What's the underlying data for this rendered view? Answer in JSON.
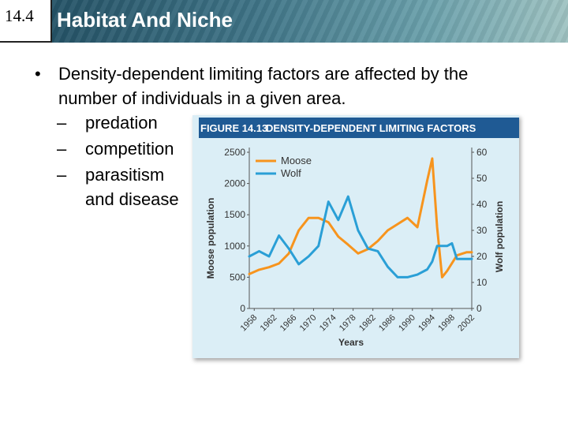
{
  "slide": {
    "section_number": "14.4",
    "title": "Habitat And Niche"
  },
  "bullets": {
    "main": "Density-dependent limiting factors are affected by the number of individuals in a given area.",
    "subs": [
      "predation",
      "competition",
      "parasitism",
      "and disease"
    ]
  },
  "chart_data": {
    "type": "line",
    "figure_label": "FIGURE 14.13",
    "title": "DENSITY-DEPENDENT LIMITING FACTORS",
    "xlabel": "Years",
    "ylabel": "Moose population",
    "y2label": "Wolf population",
    "x_ticks": [
      "1958",
      "1962",
      "1966",
      "1970",
      "1974",
      "1978",
      "1982",
      "1986",
      "1990",
      "1994",
      "1998",
      "2002"
    ],
    "y_ticks": [
      0,
      500,
      1000,
      1500,
      2000,
      2500
    ],
    "y2_ticks": [
      0,
      10,
      20,
      30,
      40,
      50,
      60
    ],
    "xlim": [
      1957,
      2002
    ],
    "ylim": [
      0,
      2500
    ],
    "y2lim": [
      0,
      60
    ],
    "grid": false,
    "legend_position": "top-left",
    "series": [
      {
        "name": "Moose",
        "axis": "left",
        "color": "#f7941d",
        "x": [
          1957,
          1959,
          1961,
          1963,
          1965,
          1967,
          1969,
          1971,
          1973,
          1975,
          1977,
          1979,
          1981,
          1983,
          1985,
          1987,
          1989,
          1991,
          1993,
          1994,
          1995,
          1996,
          1997,
          1999,
          2001,
          2002
        ],
        "y": [
          550,
          620,
          660,
          720,
          880,
          1250,
          1450,
          1450,
          1380,
          1150,
          1020,
          880,
          950,
          1080,
          1250,
          1350,
          1450,
          1300,
          2050,
          2400,
          1300,
          500,
          600,
          850,
          900,
          900
        ]
      },
      {
        "name": "Wolf",
        "axis": "right",
        "color": "#2a9fd6",
        "x": [
          1957,
          1959,
          1961,
          1963,
          1965,
          1967,
          1969,
          1971,
          1973,
          1975,
          1977,
          1979,
          1981,
          1983,
          1985,
          1987,
          1989,
          1991,
          1993,
          1994,
          1995,
          1997,
          1998,
          1999,
          2001,
          2002
        ],
        "y": [
          20,
          22,
          20,
          28,
          23,
          17,
          20,
          24,
          41,
          34,
          43,
          30,
          23,
          22,
          16,
          12,
          12,
          13,
          15,
          18,
          24,
          24,
          25,
          19,
          19,
          19
        ]
      }
    ]
  },
  "colors": {
    "header_dark": "#1e4a5e",
    "figure_band": "#1f5a94",
    "figure_bg": "#dbeef6",
    "moose": "#f7941d",
    "wolf": "#2a9fd6"
  }
}
